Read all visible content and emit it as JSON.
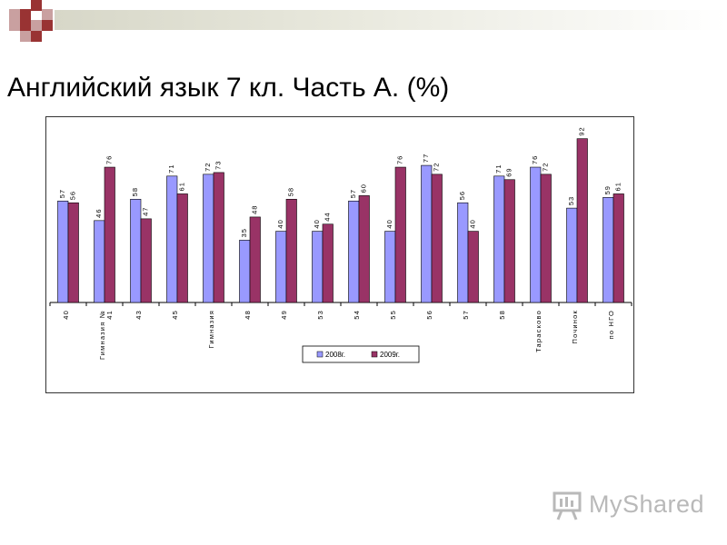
{
  "slide": {
    "title": "Английский язык 7 кл. Часть А. (%)"
  },
  "watermark": {
    "text": "MyShared",
    "icon": "presentation-board-icon"
  },
  "colors": {
    "series_2008": "#9999ff",
    "series_2009": "#993366",
    "deco_dark": "#993333",
    "deco_light": "#c9a0a0"
  },
  "chart_data": {
    "type": "bar",
    "categories": [
      "40",
      "Гимназия № 41",
      "43",
      "45",
      "Гимназия",
      "48",
      "49",
      "53",
      "54",
      "55",
      "56",
      "57",
      "58",
      "Тарасково",
      "Починок",
      "по НГО"
    ],
    "series": [
      {
        "name": "2008г.",
        "values": [
          57,
          46,
          58,
          71,
          72,
          35,
          40,
          40,
          57,
          40,
          77,
          56,
          71,
          76,
          53,
          59
        ]
      },
      {
        "name": "2009г.",
        "values": [
          56,
          76,
          47,
          61,
          73,
          48,
          58,
          44,
          60,
          76,
          72,
          40,
          69,
          72,
          92,
          61
        ]
      }
    ],
    "data_labels": true,
    "ylim": [
      0,
      100
    ],
    "legend_position": "bottom",
    "grid": false
  }
}
